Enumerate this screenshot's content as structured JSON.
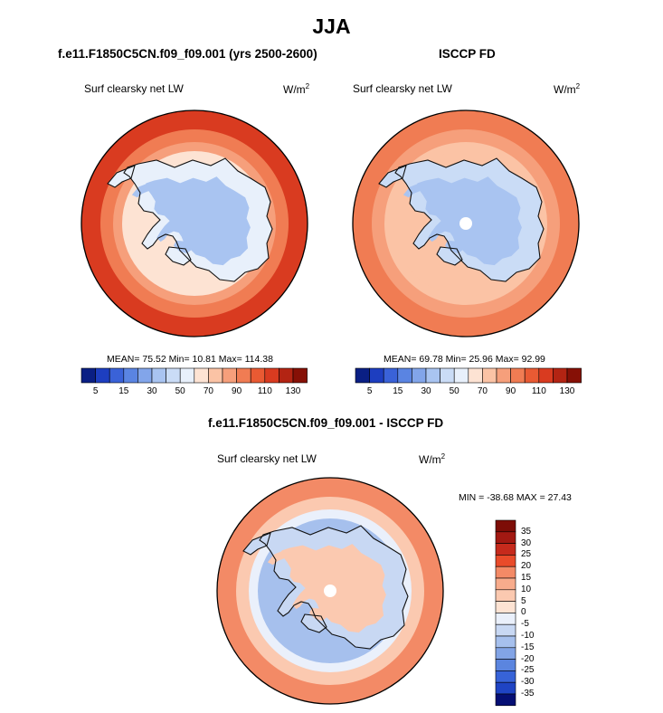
{
  "figure": {
    "season": "JJA",
    "colors": {
      "warm": [
        "#fde3d3",
        "#fbc9b0",
        "#f8ac8c",
        "#f38a66",
        "#ef6a44",
        "#e94b2a",
        "#c62a1c",
        "#a31912",
        "#7d0d07"
      ],
      "cool": [
        "#eaf0fb",
        "#c8d8f3",
        "#a6c0ed",
        "#82a4e6",
        "#5b85df",
        "#3763d8",
        "#1f44c4",
        "#0f2a9e",
        "#050f74"
      ],
      "neutral": "#fff6e8",
      "coast": "#111111"
    },
    "panels": [
      {
        "title": "f.e11.F1850C5CN.f09_f09.001 (yrs 2500-2600)",
        "variable": "Surf clearsky net LW",
        "units": "W/m",
        "units_exp": "2",
        "stats_text": "MEAN= 75.52  Min= 10.81  Max= 114.38"
      },
      {
        "title": "ISCCP FD",
        "variable": "Surf clearsky net LW",
        "units": "W/m",
        "units_exp": "2",
        "stats_text": "MEAN= 69.78  Min= 25.96  Max= 92.99"
      },
      {
        "title": "f.e11.F1850C5CN.f09_f09.001 - ISCCP FD",
        "variable": "Surf clearsky net LW",
        "units": "W/m",
        "units_exp": "2",
        "stats_text": "MIN = -38.68  MAX = 27.43"
      }
    ]
  },
  "chart_data": [
    {
      "type": "heatmap",
      "projection": "south-polar-stereographic",
      "title": "f.e11.F1850C5CN.f09_f09.001 (yrs 2500-2600)",
      "variable": "Surf clearsky net LW",
      "units": "W/m2",
      "mean": 75.52,
      "min": 10.81,
      "max": 114.38,
      "colorbar_levels": [
        5,
        10,
        15,
        20,
        30,
        40,
        50,
        60,
        70,
        80,
        90,
        100,
        110,
        120,
        130
      ],
      "colorbar_tick_labels": [
        "5",
        "15",
        "30",
        "50",
        "70",
        "90",
        "110",
        "130"
      ],
      "regions": {
        "antarctic_interior": 35,
        "antarctic_coast": 55,
        "sea_ice_zone": 65,
        "southern_ocean": 95,
        "mid_latitude_ring": 110
      }
    },
    {
      "type": "heatmap",
      "projection": "south-polar-stereographic",
      "title": "ISCCP FD",
      "variable": "Surf clearsky net LW",
      "units": "W/m2",
      "mean": 69.78,
      "min": 25.96,
      "max": 92.99,
      "colorbar_levels": [
        5,
        10,
        15,
        20,
        30,
        40,
        50,
        60,
        70,
        80,
        90,
        100,
        110,
        120,
        130
      ],
      "colorbar_tick_labels": [
        "5",
        "15",
        "30",
        "50",
        "70",
        "90",
        "110",
        "130"
      ],
      "regions": {
        "antarctic_interior": 30,
        "antarctic_coast": 45,
        "sea_ice_zone": 70,
        "southern_ocean": 85,
        "mid_latitude_ring": 90
      }
    },
    {
      "type": "heatmap",
      "projection": "south-polar-stereographic",
      "title": "f.e11.F1850C5CN.f09_f09.001 - ISCCP FD",
      "variable": "Surf clearsky net LW",
      "units": "W/m2",
      "min": -38.68,
      "max": 27.43,
      "colorbar_levels": [
        -35,
        -30,
        -25,
        -20,
        -15,
        -10,
        -5,
        0,
        5,
        10,
        15,
        20,
        25,
        30,
        35
      ],
      "colorbar_tick_labels": [
        "35",
        "30",
        "25",
        "20",
        "15",
        "10",
        "5",
        "0",
        "-5",
        "-10",
        "-15",
        "-20",
        "-25",
        "-30",
        "-35"
      ],
      "regions": {
        "antarctic_interior": 8,
        "antarctic_coast": -10,
        "sea_ice_zone": -12,
        "southern_ocean": 8,
        "mid_latitude_ring": 15
      }
    }
  ]
}
